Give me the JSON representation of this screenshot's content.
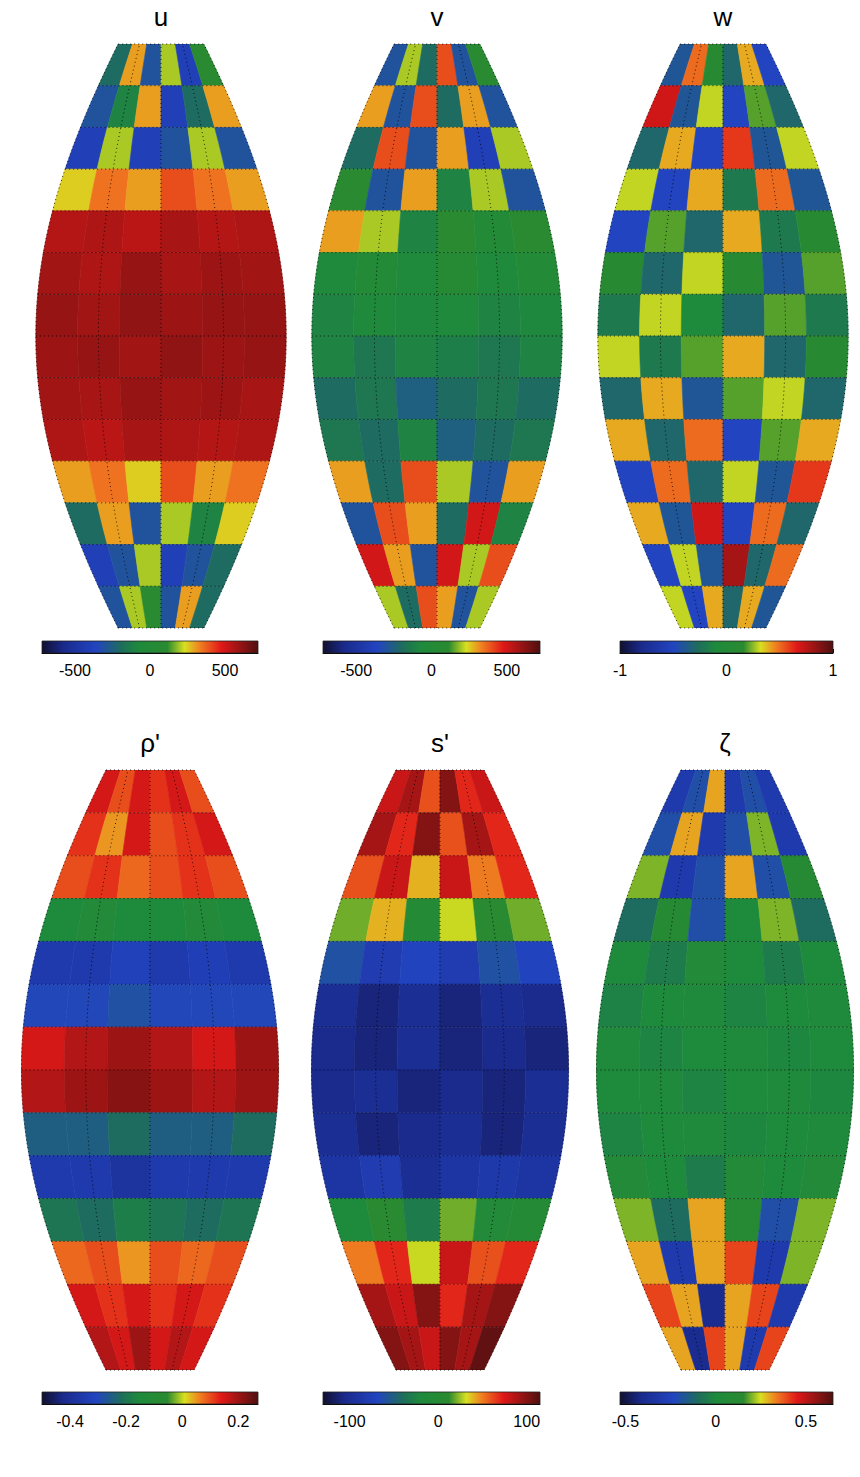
{
  "chart_data": [
    {
      "type": "heatmap",
      "title": "u",
      "xlim": [
        -30,
        30
      ],
      "ylim": [
        -70,
        70
      ],
      "xticks": [
        -30,
        -15,
        0,
        15,
        30
      ],
      "yticks": [
        -70,
        -60,
        -50,
        -40,
        -30,
        -20,
        -10,
        0,
        10,
        20,
        30,
        40,
        50,
        60,
        70
      ],
      "grid": true,
      "tick_labels": false,
      "lon_edges": [
        -30,
        -20,
        -10,
        0,
        10,
        20,
        30
      ],
      "lat_edges": [
        70,
        60,
        50,
        40,
        30,
        20,
        10,
        0,
        -10,
        -20,
        -30,
        -40,
        -50,
        -60,
        -70
      ],
      "cells": [
        [
          -200,
          300,
          -300,
          200,
          -400,
          100
        ],
        [
          -300,
          -100,
          300,
          -400,
          -200,
          300
        ],
        [
          -400,
          200,
          -400,
          -300,
          200,
          -300
        ],
        [
          250,
          350,
          300,
          400,
          350,
          300
        ],
        [
          550,
          560,
          540,
          570,
          550,
          560
        ],
        [
          580,
          560,
          600,
          570,
          590,
          580
        ],
        [
          600,
          580,
          610,
          590,
          600,
          600
        ],
        [
          590,
          600,
          580,
          610,
          590,
          600
        ],
        [
          580,
          570,
          600,
          580,
          590,
          570
        ],
        [
          560,
          540,
          570,
          560,
          550,
          560
        ],
        [
          300,
          350,
          250,
          400,
          300,
          350
        ],
        [
          -200,
          300,
          -300,
          200,
          -100,
          250
        ],
        [
          -400,
          -300,
          200,
          -400,
          -300,
          -200
        ],
        [
          -300,
          200,
          100,
          -300,
          300,
          -200
        ]
      ],
      "colorbar_range": [
        -720,
        720
      ],
      "colorbar_ticks": [
        -500,
        0,
        500
      ]
    },
    {
      "type": "heatmap",
      "title": "v",
      "xlim": [
        -30,
        30
      ],
      "ylim": [
        -70,
        70
      ],
      "xticks": [
        -30,
        -15,
        0,
        15,
        30
      ],
      "yticks": [
        -70,
        -60,
        -50,
        -40,
        -30,
        -20,
        -10,
        0,
        10,
        20,
        30,
        40,
        50,
        60,
        70
      ],
      "grid": true,
      "tick_labels": false,
      "lon_edges": [
        -30,
        -20,
        -10,
        0,
        10,
        20,
        30
      ],
      "lat_edges": [
        70,
        60,
        50,
        40,
        30,
        20,
        10,
        0,
        -10,
        -20,
        -30,
        -40,
        -50,
        -60,
        -70
      ],
      "cells": [
        [
          -300,
          200,
          -200,
          400,
          -300,
          100
        ],
        [
          300,
          -300,
          400,
          -200,
          300,
          -300
        ],
        [
          -200,
          400,
          -300,
          300,
          -400,
          200
        ],
        [
          100,
          -300,
          300,
          -100,
          200,
          -300
        ],
        [
          300,
          200,
          -100,
          100,
          0,
          100
        ],
        [
          -50,
          0,
          -50,
          50,
          -50,
          0
        ],
        [
          -100,
          -50,
          -80,
          -50,
          -100,
          -80
        ],
        [
          -100,
          -150,
          -100,
          -120,
          -150,
          -100
        ],
        [
          -200,
          -150,
          -250,
          -200,
          -150,
          -200
        ],
        [
          -150,
          -200,
          -100,
          -250,
          -200,
          -150
        ],
        [
          300,
          -200,
          400,
          200,
          -300,
          300
        ],
        [
          -300,
          400,
          300,
          -200,
          500,
          -100
        ],
        [
          500,
          300,
          -300,
          500,
          200,
          400
        ],
        [
          200,
          -200,
          400,
          300,
          -300,
          200
        ]
      ],
      "colorbar_range": [
        -720,
        720
      ],
      "colorbar_ticks": [
        -500,
        0,
        500
      ]
    },
    {
      "type": "heatmap",
      "title": "w",
      "xlim": [
        -30,
        30
      ],
      "ylim": [
        -70,
        70
      ],
      "xticks": [
        -30,
        -15,
        0,
        15,
        30
      ],
      "yticks": [
        -70,
        -60,
        -50,
        -40,
        -30,
        -20,
        -10,
        0,
        10,
        20,
        30,
        40,
        50,
        60,
        70
      ],
      "grid": true,
      "tick_labels": false,
      "lon_edges": [
        -30,
        -20,
        -10,
        0,
        10,
        20,
        30
      ],
      "lat_edges": [
        70,
        60,
        50,
        40,
        30,
        20,
        10,
        0,
        -10,
        -20,
        -30,
        -40,
        -50,
        -60,
        -70
      ],
      "cells": [
        [
          -0.4,
          0.5,
          0.1,
          -0.3,
          0.4,
          -0.5
        ],
        [
          0.7,
          -0.4,
          0.3,
          -0.5,
          0.2,
          -0.3
        ],
        [
          -0.3,
          0.4,
          -0.5,
          0.6,
          -0.4,
          0.3
        ],
        [
          0.3,
          -0.5,
          0.4,
          -0.2,
          0.5,
          -0.4
        ],
        [
          -0.5,
          0.2,
          -0.3,
          0.4,
          -0.2,
          0.1
        ],
        [
          0.1,
          -0.3,
          0.3,
          0.1,
          -0.4,
          0.2
        ],
        [
          -0.2,
          0.3,
          -0.1,
          -0.3,
          0.2,
          -0.2
        ],
        [
          0.3,
          -0.2,
          0.2,
          0.4,
          -0.3,
          0.1
        ],
        [
          -0.3,
          0.4,
          -0.4,
          0.2,
          0.3,
          -0.3
        ],
        [
          0.4,
          -0.3,
          0.5,
          -0.5,
          0.2,
          0.4
        ],
        [
          -0.5,
          0.5,
          -0.3,
          0.3,
          -0.4,
          0.6
        ],
        [
          0.4,
          -0.4,
          0.7,
          -0.5,
          0.5,
          -0.3
        ],
        [
          -0.5,
          0.3,
          -0.4,
          0.8,
          -0.3,
          0.5
        ],
        [
          0.3,
          -0.5,
          0.4,
          -0.3,
          0.4,
          -0.4
        ]
      ],
      "colorbar_range": [
        -1,
        1
      ],
      "colorbar_ticks": [
        -1,
        0,
        1
      ]
    },
    {
      "type": "heatmap",
      "title": "ρ'",
      "xlim": [
        -30,
        30
      ],
      "ylim": [
        -70,
        70
      ],
      "xticks": [
        -30,
        -15,
        0,
        15,
        30
      ],
      "yticks": [
        -70,
        -60,
        -50,
        -40,
        -30,
        -20,
        -10,
        0,
        10,
        20,
        30,
        40,
        50,
        60,
        70
      ],
      "grid": true,
      "tick_labels": false,
      "lon_edges": [
        -30,
        -20,
        -10,
        0,
        10,
        20,
        30
      ],
      "lat_edges": [
        70,
        60,
        50,
        40,
        30,
        20,
        10,
        0,
        -10,
        -20,
        -30,
        -40,
        -50,
        -60,
        -70
      ],
      "cells": [
        [
          0.15,
          0.1,
          0.15,
          0.12,
          0.15,
          0.1
        ],
        [
          0.12,
          0.05,
          0.15,
          0.1,
          0.12,
          0.15
        ],
        [
          0.1,
          0.12,
          0.08,
          0.1,
          0.12,
          0.1
        ],
        [
          -0.15,
          -0.12,
          -0.15,
          -0.15,
          -0.12,
          -0.15
        ],
        [
          -0.35,
          -0.35,
          -0.32,
          -0.35,
          -0.33,
          -0.35
        ],
        [
          -0.3,
          -0.3,
          -0.28,
          -0.3,
          -0.3,
          -0.3
        ],
        [
          0.15,
          0.18,
          0.2,
          0.18,
          0.15,
          0.2
        ],
        [
          0.18,
          0.2,
          0.22,
          0.2,
          0.18,
          0.2
        ],
        [
          -0.25,
          -0.25,
          -0.22,
          -0.25,
          -0.25,
          -0.22
        ],
        [
          -0.35,
          -0.35,
          -0.38,
          -0.35,
          -0.35,
          -0.35
        ],
        [
          -0.2,
          -0.22,
          -0.18,
          -0.2,
          -0.22,
          -0.2
        ],
        [
          0.08,
          0.1,
          0.05,
          0.1,
          0.08,
          0.1
        ],
        [
          0.15,
          0.12,
          0.15,
          0.12,
          0.15,
          0.12
        ],
        [
          0.18,
          0.15,
          0.2,
          0.15,
          0.18,
          0.15
        ]
      ],
      "colorbar_range": [
        -0.5,
        0.27
      ],
      "colorbar_ticks": [
        -0.4,
        -0.2,
        0,
        0.2
      ]
    },
    {
      "type": "heatmap",
      "title": "s'",
      "xlim": [
        -30,
        30
      ],
      "ylim": [
        -70,
        70
      ],
      "xticks": [
        -30,
        -15,
        0,
        15,
        30
      ],
      "yticks": [
        -70,
        -60,
        -50,
        -40,
        -30,
        -20,
        -10,
        0,
        10,
        20,
        30,
        40,
        50,
        60,
        70
      ],
      "grid": true,
      "tick_labels": false,
      "lon_edges": [
        -30,
        -20,
        -10,
        0,
        10,
        20,
        30
      ],
      "lat_edges": [
        70,
        60,
        50,
        40,
        30,
        20,
        10,
        0,
        -10,
        -20,
        -30,
        -40,
        -50,
        -60,
        -70
      ],
      "cells": [
        [
          80,
          90,
          60,
          100,
          70,
          80
        ],
        [
          90,
          70,
          100,
          60,
          90,
          70
        ],
        [
          60,
          80,
          40,
          80,
          50,
          70
        ],
        [
          20,
          40,
          0,
          30,
          10,
          20
        ],
        [
          -60,
          -80,
          -70,
          -80,
          -60,
          -70
        ],
        [
          -100,
          -110,
          -100,
          -110,
          -100,
          -105
        ],
        [
          -105,
          -110,
          -100,
          -110,
          -105,
          -110
        ],
        [
          -105,
          -100,
          -110,
          -105,
          -110,
          -100
        ],
        [
          -100,
          -110,
          -105,
          -100,
          -110,
          -100
        ],
        [
          -90,
          -80,
          -100,
          -90,
          -85,
          -90
        ],
        [
          -20,
          10,
          -30,
          20,
          -10,
          0
        ],
        [
          50,
          70,
          30,
          80,
          60,
          70
        ],
        [
          90,
          80,
          100,
          70,
          90,
          100
        ],
        [
          100,
          90,
          80,
          100,
          90,
          110
        ]
      ],
      "colorbar_range": [
        -130,
        115
      ],
      "colorbar_ticks": [
        -100,
        0,
        100
      ]
    },
    {
      "type": "heatmap",
      "title": "ζ",
      "xlim": [
        -30,
        30
      ],
      "ylim": [
        -70,
        70
      ],
      "xticks": [
        -30,
        -15,
        0,
        15,
        30
      ],
      "yticks": [
        -70,
        -60,
        -50,
        -40,
        -30,
        -20,
        -10,
        0,
        10,
        20,
        30,
        40,
        50,
        60,
        70
      ],
      "grid": true,
      "tick_labels": false,
      "lon_edges": [
        -30,
        -20,
        -10,
        0,
        10,
        20,
        30
      ],
      "lat_edges": [
        70,
        60,
        50,
        40,
        30,
        20,
        10,
        0,
        -10,
        -20,
        -30,
        -40,
        -50,
        -60,
        -70
      ],
      "cells": [
        [
          -0.3,
          -0.2,
          0.3,
          -0.3,
          -0.2,
          -0.3
        ],
        [
          -0.2,
          0.3,
          -0.3,
          -0.2,
          0.2,
          -0.3
        ],
        [
          0.2,
          -0.3,
          -0.2,
          0.3,
          -0.2,
          0.1
        ],
        [
          -0.1,
          0.1,
          -0.2,
          0.0,
          0.2,
          -0.1
        ],
        [
          0.0,
          -0.05,
          0.05,
          0.0,
          -0.05,
          0.0
        ],
        [
          -0.03,
          0.0,
          0.02,
          -0.02,
          0.0,
          0.01
        ],
        [
          0.01,
          -0.02,
          0.0,
          0.02,
          -0.01,
          0.0
        ],
        [
          0.0,
          0.01,
          -0.02,
          0.0,
          0.02,
          -0.01
        ],
        [
          -0.02,
          0.0,
          0.01,
          -0.01,
          0.0,
          0.02
        ],
        [
          0.05,
          0.0,
          -0.05,
          0.05,
          0.0,
          0.05
        ],
        [
          0.2,
          -0.1,
          0.3,
          0.1,
          -0.2,
          0.2
        ],
        [
          0.3,
          -0.3,
          0.3,
          0.4,
          -0.3,
          0.2
        ],
        [
          0.4,
          0.3,
          -0.4,
          0.3,
          0.4,
          -0.3
        ],
        [
          0.3,
          -0.4,
          0.4,
          0.3,
          -0.3,
          0.4
        ]
      ],
      "colorbar_range": [
        -0.53,
        0.65
      ],
      "colorbar_ticks": [
        -0.5,
        0,
        0.5
      ]
    }
  ]
}
